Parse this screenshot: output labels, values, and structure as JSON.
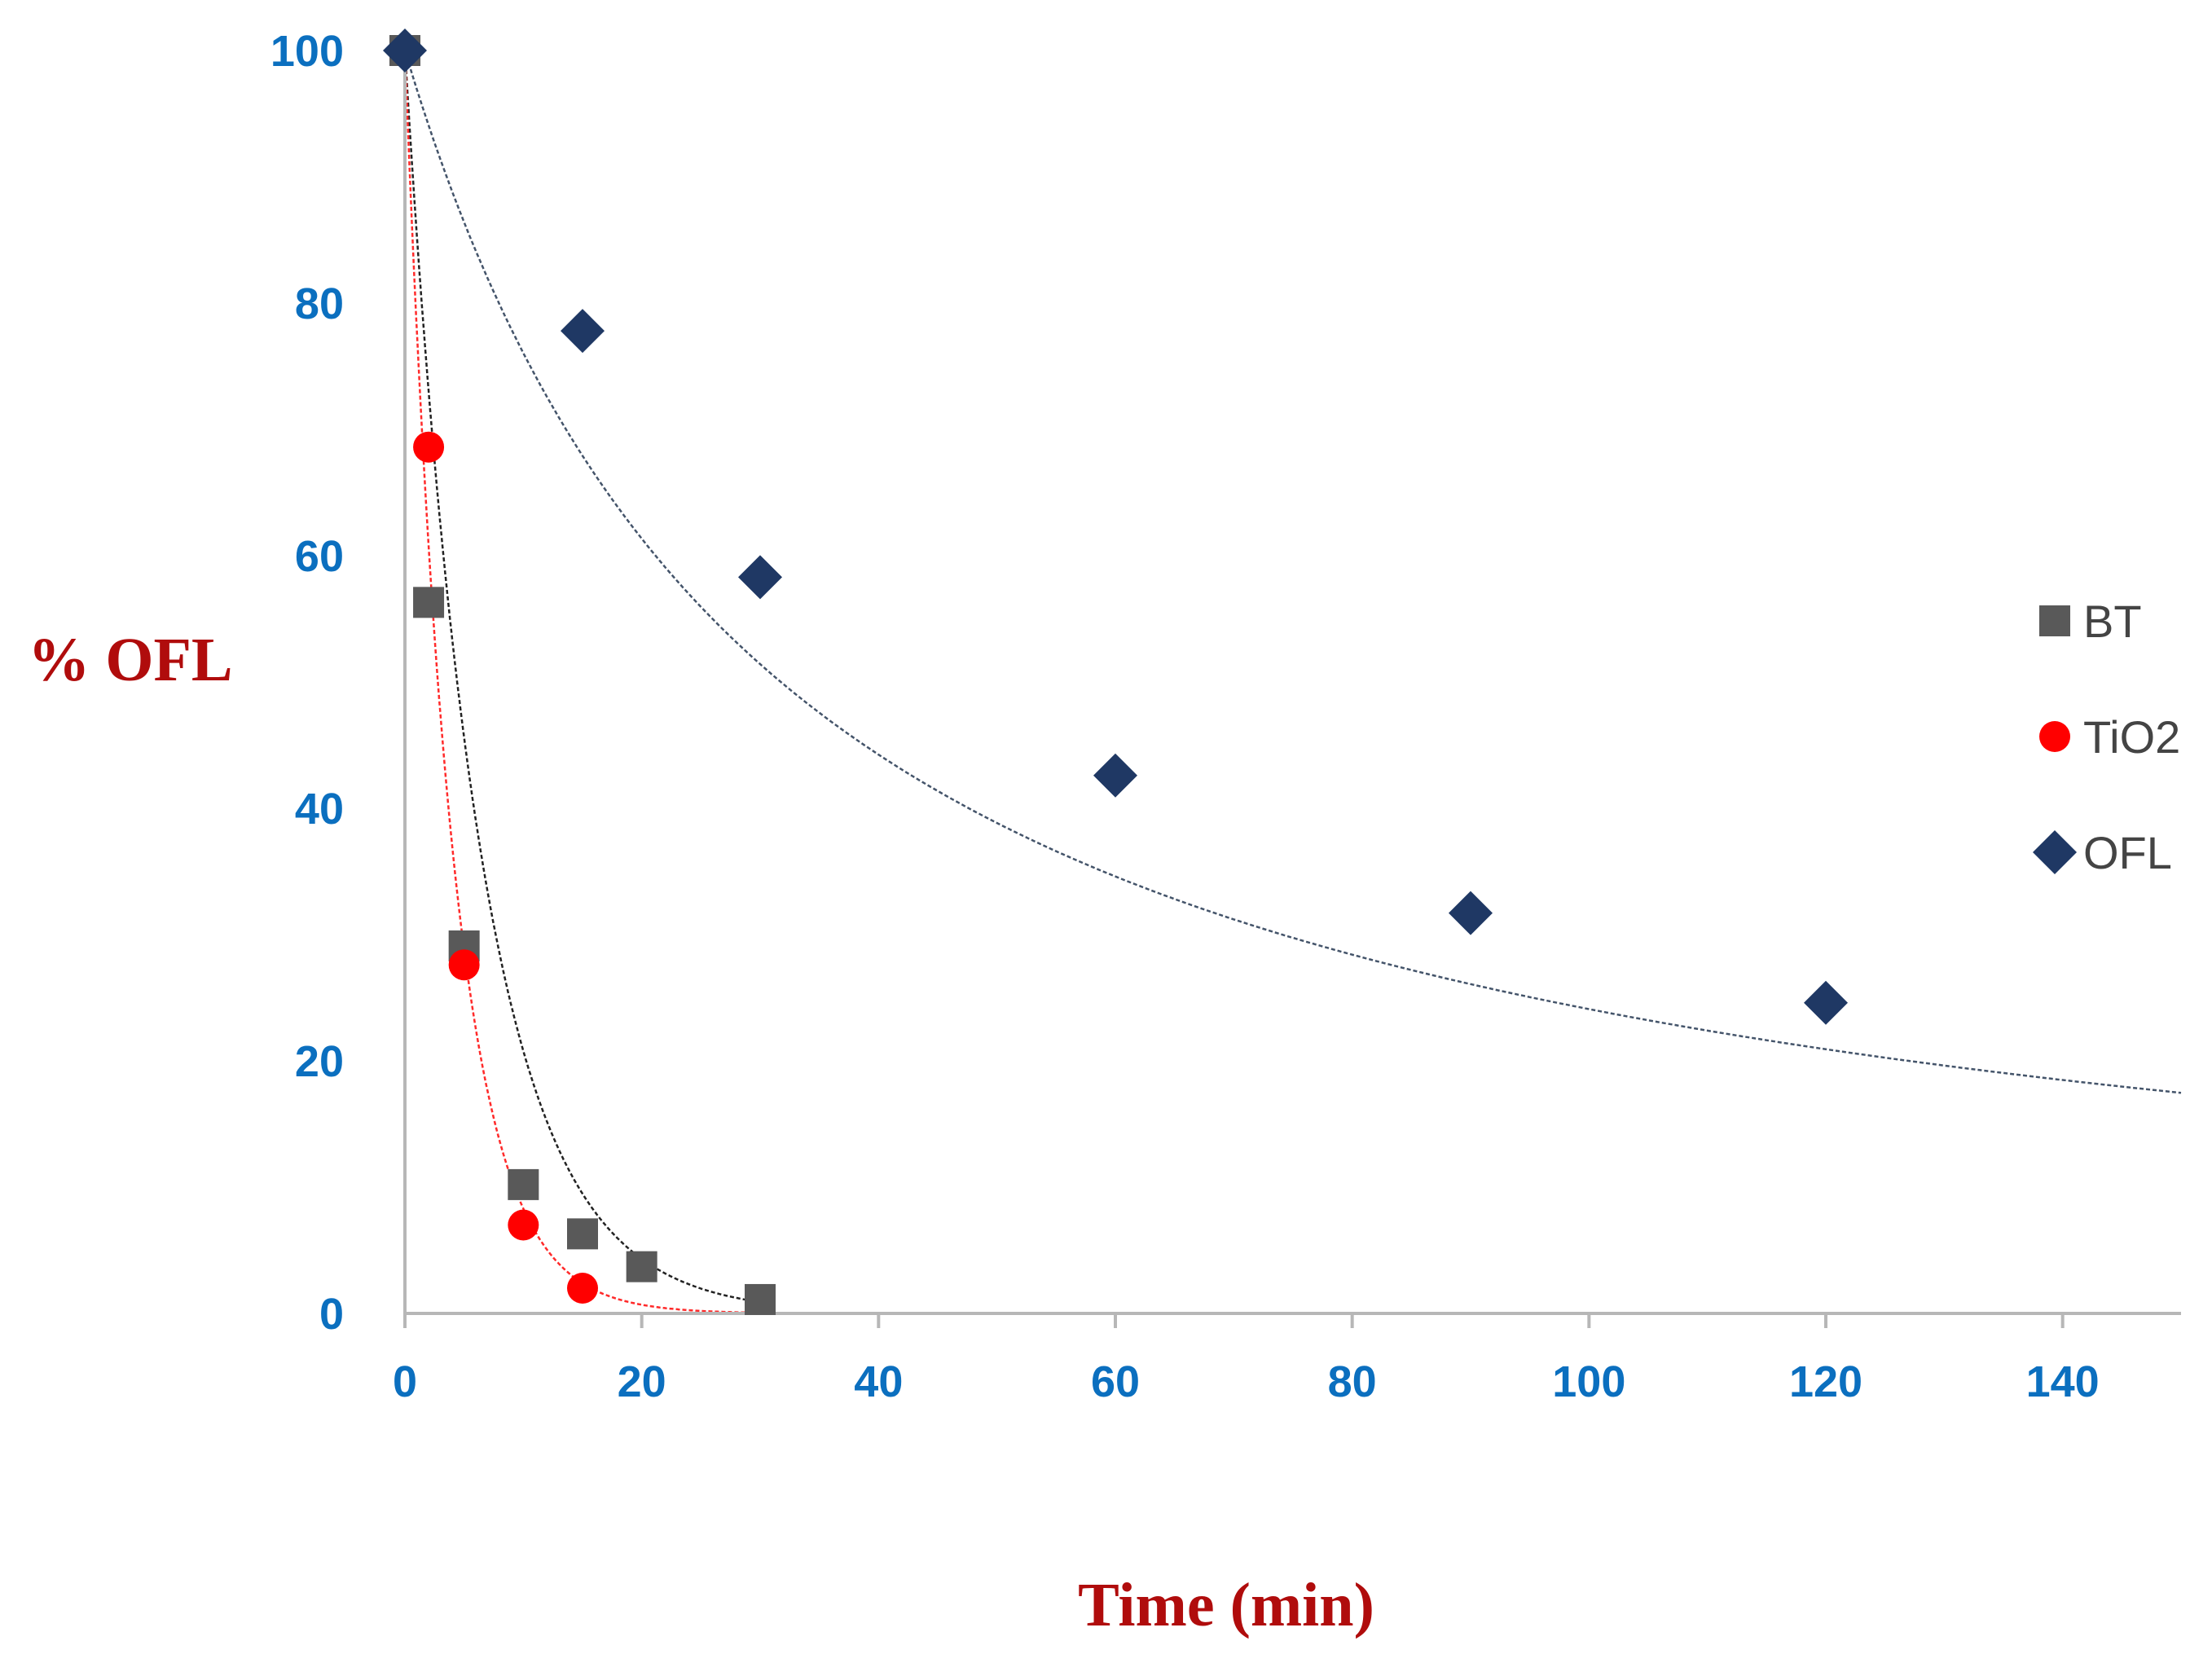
{
  "chart_data": {
    "type": "scatter",
    "title": "",
    "xlabel": "Time (min)",
    "ylabel": "% OFL",
    "xlim": [
      0,
      150
    ],
    "ylim": [
      0,
      100
    ],
    "xticks": [
      "0",
      "20",
      "40",
      "60",
      "80",
      "100",
      "120",
      "140"
    ],
    "yticks": [
      "0",
      "20",
      "40",
      "60",
      "80",
      "100"
    ],
    "grid": false,
    "legend_position": "right",
    "series": [
      {
        "name": "BT",
        "marker": "square",
        "color": "#595959",
        "fit_color": "#222222",
        "x": [
          0,
          2,
          5,
          10,
          15,
          20,
          30
        ],
        "y": [
          100,
          56.3,
          29.1,
          10.2,
          6.3,
          3.7,
          1.1
        ],
        "fit": {
          "model": "exponential",
          "a": 100,
          "k": 0.1571,
          "x_end": 30
        }
      },
      {
        "name": "TiO2",
        "marker": "circle",
        "color": "#ff0000",
        "fit_color": "#ff2a2a",
        "x": [
          0,
          2,
          5,
          10,
          15
        ],
        "y": [
          100,
          68.6,
          27.6,
          7.0,
          2.0
        ],
        "fit": {
          "model": "exponential",
          "a": 100,
          "k": 0.2489,
          "x_end": 29
        }
      },
      {
        "name": "OFL",
        "marker": "diamond",
        "color": "#1f3864",
        "fit_color": "#44546a",
        "x": [
          0,
          15,
          30,
          60,
          90,
          120
        ],
        "y": [
          100,
          77.8,
          58.3,
          42.6,
          31.7,
          24.6
        ],
        "fit": {
          "model": "second-order",
          "a": 100,
          "k": 0.000315,
          "x_end": 150
        }
      }
    ]
  }
}
